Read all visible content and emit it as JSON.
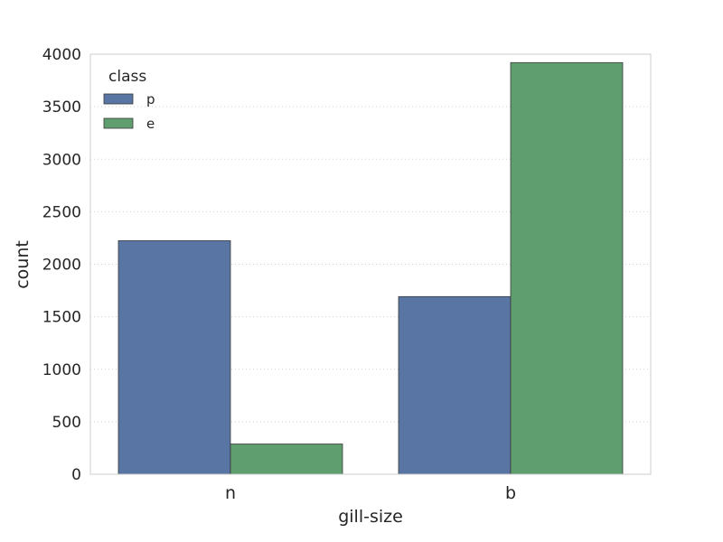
{
  "chart_data": {
    "type": "bar",
    "categories": [
      "n",
      "b"
    ],
    "series": [
      {
        "name": "p",
        "values": [
          2224,
          1692
        ],
        "color": "#5875a4"
      },
      {
        "name": "e",
        "values": [
          288,
          3920
        ],
        "color": "#5f9e6e"
      }
    ],
    "xlabel": "gill-size",
    "ylabel": "count",
    "ylim": [
      0,
      4000
    ],
    "yticks": [
      0,
      500,
      1000,
      1500,
      2000,
      2500,
      3000,
      3500,
      4000
    ],
    "legend": {
      "title": "class",
      "placement": "top-left"
    },
    "grid": {
      "y": true,
      "x": false,
      "style": "dotted"
    }
  }
}
